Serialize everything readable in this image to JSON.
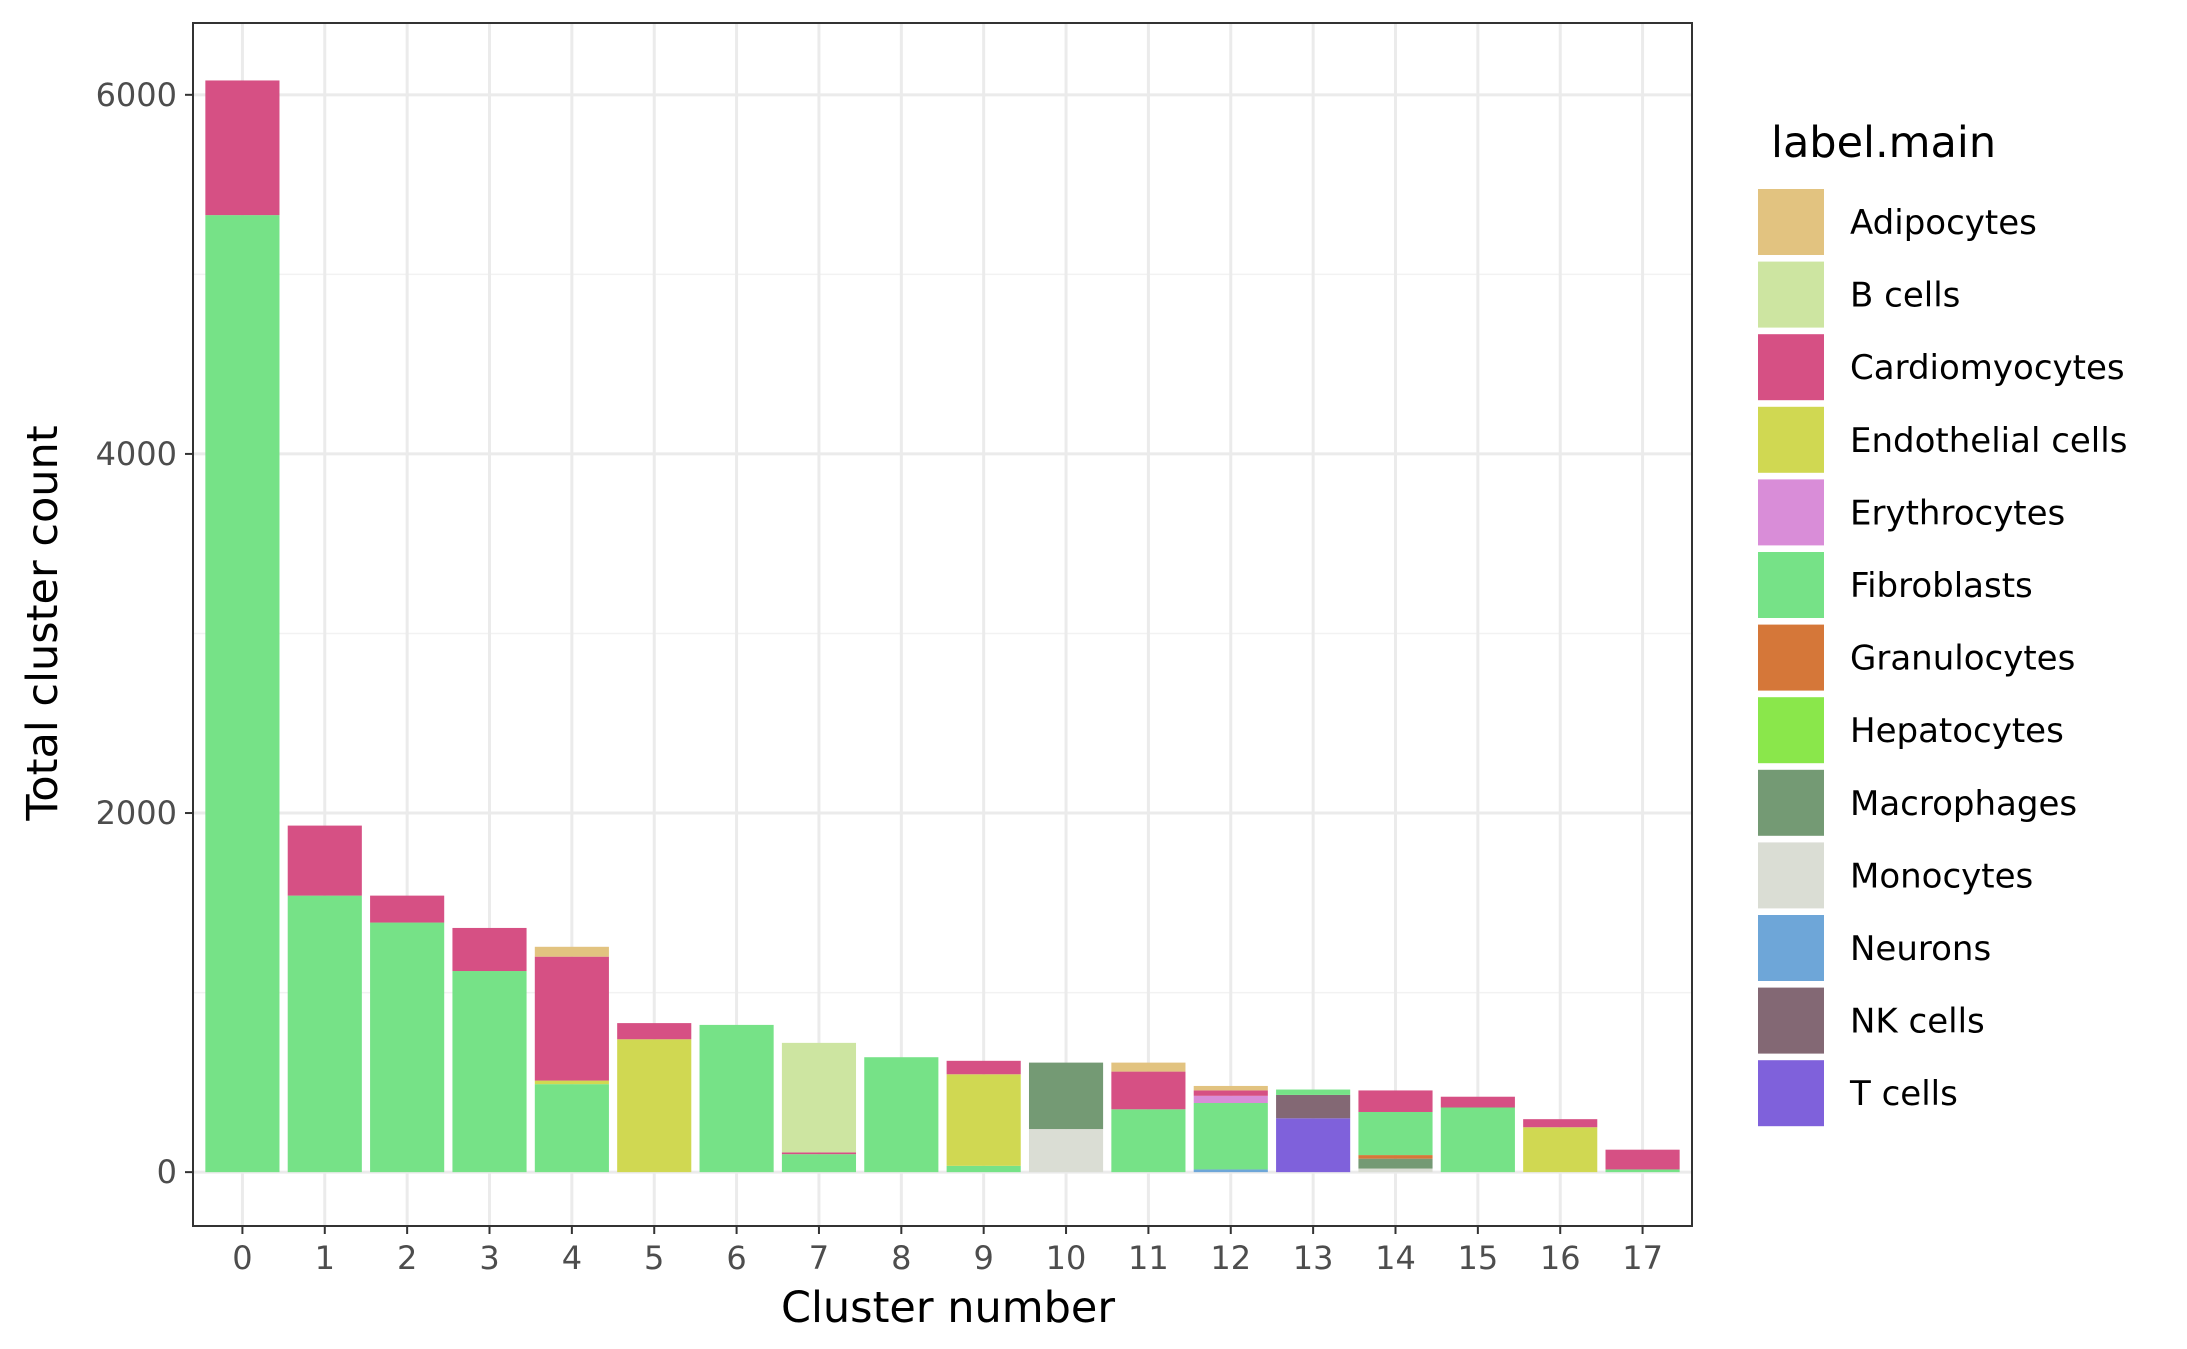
{
  "chart_data": {
    "type": "bar",
    "stacked": true,
    "xlabel": "Cluster number",
    "ylabel": "Total cluster count",
    "ylim": [
      -300,
      6400
    ],
    "yticks": [
      0,
      2000,
      4000,
      6000
    ],
    "grid": true,
    "legend_title": "label.main",
    "legend_position": "right",
    "categories": [
      "0",
      "1",
      "2",
      "3",
      "4",
      "5",
      "6",
      "7",
      "8",
      "9",
      "10",
      "11",
      "12",
      "13",
      "14",
      "15",
      "16",
      "17"
    ],
    "series": [
      {
        "name": "Adipocytes",
        "color": "#E2C380",
        "values": [
          0,
          0,
          0,
          0,
          55,
          0,
          0,
          0,
          0,
          0,
          0,
          50,
          25,
          0,
          0,
          0,
          0,
          0
        ]
      },
      {
        "name": "B cells",
        "color": "#CDE5A1",
        "values": [
          0,
          0,
          0,
          0,
          0,
          0,
          0,
          610,
          0,
          0,
          0,
          0,
          0,
          0,
          0,
          0,
          0,
          0
        ]
      },
      {
        "name": "Cardiomyocytes",
        "color": "#D65084",
        "values": [
          750,
          390,
          150,
          240,
          690,
          90,
          0,
          10,
          0,
          75,
          0,
          210,
          30,
          0,
          120,
          60,
          45,
          110
        ]
      },
      {
        "name": "Endothelial cells",
        "color": "#D0D852",
        "values": [
          0,
          0,
          0,
          0,
          20,
          740,
          0,
          0,
          0,
          510,
          0,
          0,
          0,
          0,
          0,
          0,
          250,
          0
        ]
      },
      {
        "name": "Erythrocytes",
        "color": "#D98DD8",
        "values": [
          0,
          0,
          0,
          0,
          0,
          0,
          0,
          0,
          0,
          0,
          0,
          0,
          40,
          0,
          0,
          0,
          0,
          0
        ]
      },
      {
        "name": "Fibroblasts",
        "color": "#76E287",
        "values": [
          5330,
          1540,
          1390,
          1120,
          490,
          0,
          820,
          100,
          640,
          35,
          0,
          350,
          370,
          30,
          240,
          360,
          0,
          15
        ]
      },
      {
        "name": "Granulocytes",
        "color": "#D57739",
        "values": [
          0,
          0,
          0,
          0,
          0,
          0,
          0,
          0,
          0,
          0,
          0,
          0,
          0,
          0,
          20,
          0,
          0,
          0
        ]
      },
      {
        "name": "Hepatocytes",
        "color": "#8AE74B",
        "values": [
          0,
          0,
          0,
          0,
          0,
          0,
          0,
          0,
          0,
          0,
          0,
          0,
          0,
          0,
          0,
          0,
          0,
          0
        ]
      },
      {
        "name": "Macrophages",
        "color": "#749A74",
        "values": [
          0,
          0,
          0,
          0,
          0,
          0,
          0,
          0,
          0,
          0,
          370,
          0,
          0,
          0,
          55,
          0,
          0,
          0
        ]
      },
      {
        "name": "Monocytes",
        "color": "#DADDD4",
        "values": [
          0,
          0,
          0,
          0,
          0,
          0,
          0,
          0,
          0,
          0,
          240,
          0,
          0,
          0,
          20,
          0,
          0,
          0
        ]
      },
      {
        "name": "Neurons",
        "color": "#6EA6D8",
        "values": [
          0,
          0,
          0,
          0,
          0,
          0,
          0,
          0,
          0,
          0,
          0,
          0,
          15,
          0,
          0,
          0,
          0,
          0
        ]
      },
      {
        "name": "NK cells",
        "color": "#836874",
        "values": [
          0,
          0,
          0,
          0,
          0,
          0,
          0,
          0,
          0,
          0,
          0,
          0,
          0,
          130,
          0,
          0,
          0,
          0
        ]
      },
      {
        "name": "T cells",
        "color": "#7F61DB",
        "values": [
          0,
          0,
          0,
          0,
          0,
          0,
          0,
          0,
          0,
          0,
          0,
          0,
          0,
          300,
          0,
          0,
          0,
          0
        ]
      }
    ]
  }
}
